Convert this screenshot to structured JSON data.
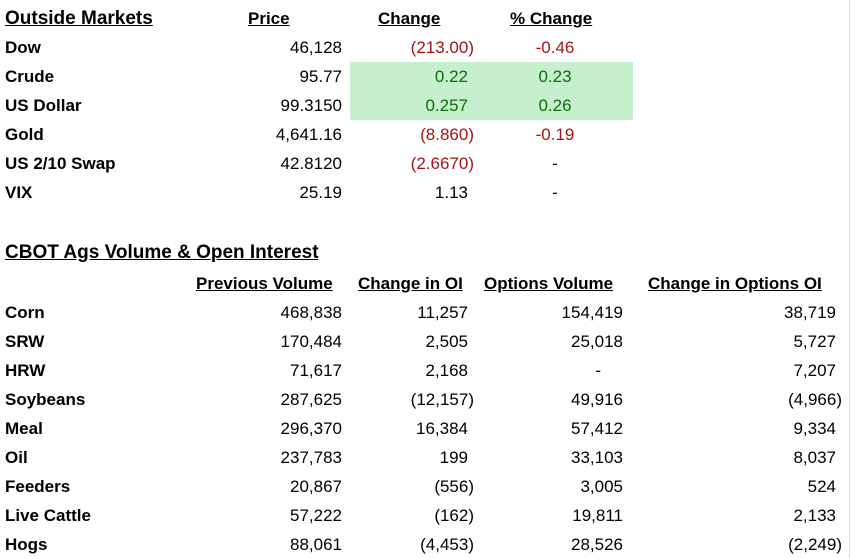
{
  "outside_markets": {
    "title": "Outside Markets",
    "headers": {
      "price": "Price",
      "change": "Change",
      "pct_change": "% Change"
    },
    "rows": [
      {
        "name": "Dow",
        "price": "46,128",
        "change": "(213.00)",
        "pct": "-0.46",
        "status": "down"
      },
      {
        "name": "Crude",
        "price": "95.77",
        "change": "0.22",
        "pct": "0.23",
        "status": "up"
      },
      {
        "name": "US Dollar",
        "price": "99.3150",
        "change": "0.257",
        "pct": "0.26",
        "status": "up"
      },
      {
        "name": "Gold",
        "price": "4,641.16",
        "change": "(8.860)",
        "pct": "-0.19",
        "status": "down"
      },
      {
        "name": "US 2/10 Swap",
        "price": "42.8120",
        "change": "(2.6670)",
        "pct": "-",
        "status": "down_change"
      },
      {
        "name": "VIX",
        "price": "25.19",
        "change": "1.13",
        "pct": "-",
        "status": "neutral"
      }
    ]
  },
  "cbot": {
    "title": "CBOT Ags Volume & Open Interest",
    "headers": {
      "prev_volume": "Previous Volume",
      "change_oi": "Change in OI",
      "options_volume": "Options Volume",
      "change_options_oi": "Change in Options OI"
    },
    "rows": [
      {
        "name": "Corn",
        "prev_volume": "468,838",
        "change_oi": "11,257",
        "options_volume": "154,419",
        "change_options_oi": "38,719"
      },
      {
        "name": "SRW",
        "prev_volume": "170,484",
        "change_oi": "2,505",
        "options_volume": "25,018",
        "change_options_oi": "5,727"
      },
      {
        "name": "HRW",
        "prev_volume": "71,617",
        "change_oi": "2,168",
        "options_volume": "-",
        "change_options_oi": "7,207"
      },
      {
        "name": "Soybeans",
        "prev_volume": "287,625",
        "change_oi": "(12,157)",
        "options_volume": "49,916",
        "change_options_oi": "(4,966)"
      },
      {
        "name": "Meal",
        "prev_volume": "296,370",
        "change_oi": "16,384",
        "options_volume": "57,412",
        "change_options_oi": "9,334"
      },
      {
        "name": "Oil",
        "prev_volume": "237,783",
        "change_oi": "199",
        "options_volume": "33,103",
        "change_options_oi": "8,037"
      },
      {
        "name": "Feeders",
        "prev_volume": "20,867",
        "change_oi": "(556)",
        "options_volume": "3,005",
        "change_options_oi": "524"
      },
      {
        "name": "Live Cattle",
        "prev_volume": "57,222",
        "change_oi": "(162)",
        "options_volume": "19,811",
        "change_options_oi": "2,133"
      },
      {
        "name": "Hogs",
        "prev_volume": "88,061",
        "change_oi": "(4,453)",
        "options_volume": "28,526",
        "change_options_oi": "(2,249)"
      }
    ]
  },
  "colors": {
    "negative": "#a31515",
    "positive": "#0b6e0b",
    "highlight": "#c6efce"
  }
}
